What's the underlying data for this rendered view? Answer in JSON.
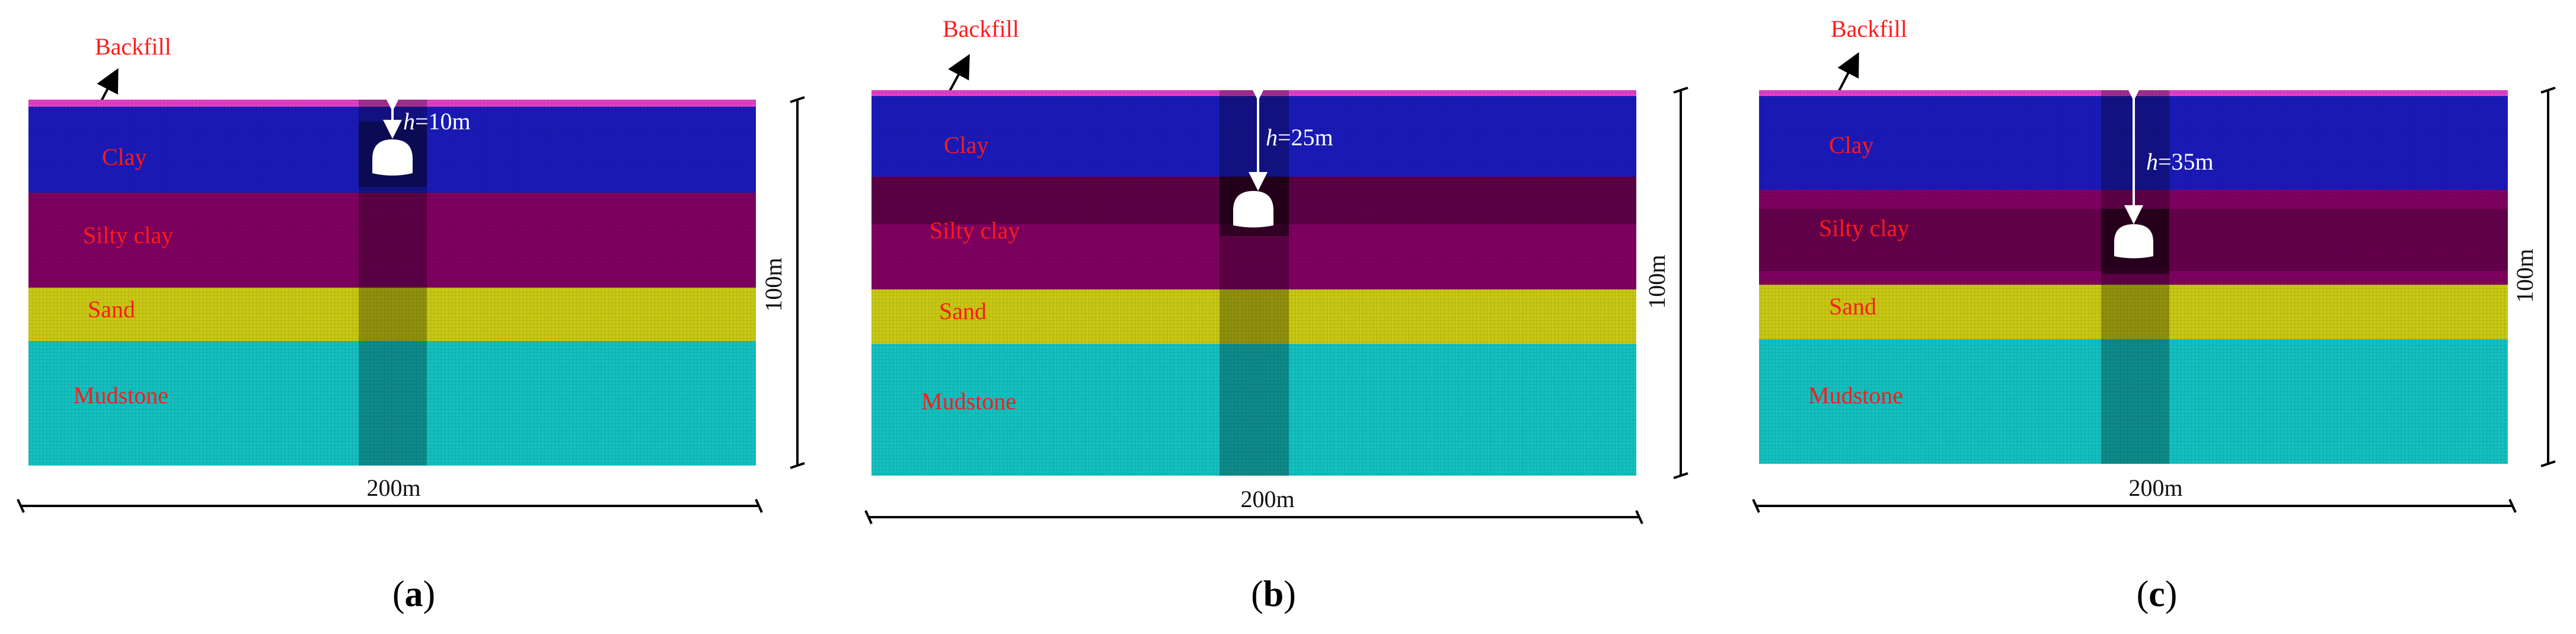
{
  "panels": [
    {
      "id": "a",
      "backfill_label": "Backfill",
      "layers": [
        {
          "name": "Clay",
          "color": "#1a1ab8"
        },
        {
          "name": "Silty clay",
          "color": "#800060"
        },
        {
          "name": "Sand",
          "color": "#c8c814"
        },
        {
          "name": "Mudstone",
          "color": "#14c0c0"
        }
      ],
      "depth_italic": "h",
      "depth_rest": "=10m",
      "height_label": "100m",
      "width_label": "200m",
      "caption_letter": "a"
    },
    {
      "id": "b",
      "backfill_label": "Backfill",
      "layers": [
        {
          "name": "Clay",
          "color": "#1a1ab8"
        },
        {
          "name": "Silty clay",
          "color": "#800060"
        },
        {
          "name": "Sand",
          "color": "#c8c814"
        },
        {
          "name": "Mudstone",
          "color": "#14c0c0"
        }
      ],
      "depth_italic": "h",
      "depth_rest": "=25m",
      "height_label": "100m",
      "width_label": "200m",
      "caption_letter": "b"
    },
    {
      "id": "c",
      "backfill_label": "Backfill",
      "layers": [
        {
          "name": "Clay",
          "color": "#1a1ab8"
        },
        {
          "name": "Silty clay",
          "color": "#800060"
        },
        {
          "name": "Sand",
          "color": "#c8c814"
        },
        {
          "name": "Mudstone",
          "color": "#14c0c0"
        }
      ],
      "depth_italic": "h",
      "depth_rest": "=35m",
      "height_label": "100m",
      "width_label": "200m",
      "caption_letter": "c"
    }
  ],
  "colors": {
    "backfill": "#e040c8",
    "clay": "#1a1ab8",
    "silty_clay": "#800060",
    "sand": "#c8c814",
    "mudstone": "#14c0c0",
    "label_text": "#ff1a1a"
  }
}
